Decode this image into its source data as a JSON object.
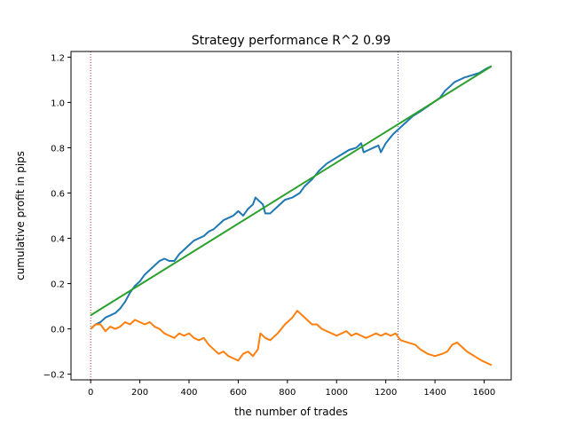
{
  "chart_data": {
    "type": "line",
    "title": "Strategy performance R^2 0.99",
    "xlabel": "the number of trades",
    "ylabel": "cumulative profit in pips",
    "xlim": [
      -80,
      1710
    ],
    "ylim": [
      -0.225,
      1.225
    ],
    "x_ticks": [
      0,
      200,
      400,
      600,
      800,
      1000,
      1200,
      1400,
      1600
    ],
    "y_ticks": [
      -0.2,
      0.0,
      0.2,
      0.4,
      0.6,
      0.8,
      1.0,
      1.2
    ],
    "x_tick_labels": [
      "0",
      "200",
      "400",
      "600",
      "800",
      "1000",
      "1200",
      "1400",
      "1600"
    ],
    "y_tick_labels": [
      "−0.2",
      "0.0",
      "0.2",
      "0.4",
      "0.6",
      "0.8",
      "1.0",
      "1.2"
    ],
    "grid": false,
    "vlines": [
      {
        "x": 0,
        "color": "#d62728",
        "style": "dotted"
      },
      {
        "x": 1250,
        "color": "#6a3d9a",
        "style": "dotted"
      }
    ],
    "series": [
      {
        "color": "#1f77b4",
        "points": [
          [
            0,
            0.0
          ],
          [
            20,
            0.02
          ],
          [
            40,
            0.03
          ],
          [
            60,
            0.05
          ],
          [
            80,
            0.06
          ],
          [
            100,
            0.07
          ],
          [
            120,
            0.09
          ],
          [
            140,
            0.12
          ],
          [
            160,
            0.16
          ],
          [
            180,
            0.19
          ],
          [
            200,
            0.21
          ],
          [
            220,
            0.24
          ],
          [
            240,
            0.26
          ],
          [
            260,
            0.28
          ],
          [
            280,
            0.3
          ],
          [
            300,
            0.31
          ],
          [
            320,
            0.3
          ],
          [
            340,
            0.3
          ],
          [
            360,
            0.33
          ],
          [
            380,
            0.35
          ],
          [
            400,
            0.37
          ],
          [
            420,
            0.39
          ],
          [
            440,
            0.4
          ],
          [
            460,
            0.41
          ],
          [
            480,
            0.43
          ],
          [
            500,
            0.44
          ],
          [
            520,
            0.46
          ],
          [
            540,
            0.48
          ],
          [
            560,
            0.49
          ],
          [
            580,
            0.5
          ],
          [
            600,
            0.52
          ],
          [
            620,
            0.5
          ],
          [
            640,
            0.53
          ],
          [
            660,
            0.55
          ],
          [
            670,
            0.58
          ],
          [
            690,
            0.56
          ],
          [
            700,
            0.55
          ],
          [
            710,
            0.51
          ],
          [
            730,
            0.51
          ],
          [
            760,
            0.54
          ],
          [
            790,
            0.57
          ],
          [
            820,
            0.58
          ],
          [
            850,
            0.6
          ],
          [
            870,
            0.63
          ],
          [
            900,
            0.66
          ],
          [
            930,
            0.7
          ],
          [
            960,
            0.73
          ],
          [
            990,
            0.75
          ],
          [
            1020,
            0.77
          ],
          [
            1050,
            0.79
          ],
          [
            1080,
            0.8
          ],
          [
            1100,
            0.82
          ],
          [
            1110,
            0.78
          ],
          [
            1130,
            0.79
          ],
          [
            1150,
            0.8
          ],
          [
            1170,
            0.81
          ],
          [
            1180,
            0.78
          ],
          [
            1200,
            0.82
          ],
          [
            1230,
            0.86
          ],
          [
            1250,
            0.88
          ],
          [
            1280,
            0.91
          ],
          [
            1310,
            0.94
          ],
          [
            1340,
            0.96
          ],
          [
            1380,
            0.99
          ],
          [
            1420,
            1.02
          ],
          [
            1440,
            1.05
          ],
          [
            1460,
            1.07
          ],
          [
            1480,
            1.09
          ],
          [
            1500,
            1.1
          ],
          [
            1520,
            1.11
          ],
          [
            1550,
            1.12
          ],
          [
            1580,
            1.13
          ],
          [
            1610,
            1.15
          ],
          [
            1630,
            1.16
          ]
        ]
      },
      {
        "color": "#ff7f0e",
        "points": [
          [
            0,
            0.0
          ],
          [
            20,
            0.02
          ],
          [
            40,
            0.02
          ],
          [
            60,
            -0.01
          ],
          [
            80,
            0.01
          ],
          [
            100,
            0.0
          ],
          [
            120,
            0.01
          ],
          [
            140,
            0.03
          ],
          [
            160,
            0.02
          ],
          [
            180,
            0.04
          ],
          [
            200,
            0.03
          ],
          [
            220,
            0.02
          ],
          [
            240,
            0.03
          ],
          [
            260,
            0.01
          ],
          [
            280,
            0.0
          ],
          [
            300,
            -0.02
          ],
          [
            320,
            -0.03
          ],
          [
            340,
            -0.04
          ],
          [
            360,
            -0.02
          ],
          [
            380,
            -0.03
          ],
          [
            400,
            -0.02
          ],
          [
            420,
            -0.04
          ],
          [
            440,
            -0.05
          ],
          [
            460,
            -0.04
          ],
          [
            480,
            -0.07
          ],
          [
            500,
            -0.09
          ],
          [
            520,
            -0.11
          ],
          [
            540,
            -0.1
          ],
          [
            560,
            -0.12
          ],
          [
            580,
            -0.13
          ],
          [
            600,
            -0.14
          ],
          [
            620,
            -0.11
          ],
          [
            640,
            -0.1
          ],
          [
            660,
            -0.12
          ],
          [
            680,
            -0.09
          ],
          [
            690,
            -0.02
          ],
          [
            710,
            -0.04
          ],
          [
            730,
            -0.05
          ],
          [
            760,
            -0.02
          ],
          [
            790,
            0.02
          ],
          [
            820,
            0.05
          ],
          [
            840,
            0.08
          ],
          [
            860,
            0.06
          ],
          [
            880,
            0.04
          ],
          [
            900,
            0.02
          ],
          [
            920,
            0.02
          ],
          [
            940,
            0.0
          ],
          [
            960,
            -0.01
          ],
          [
            980,
            -0.02
          ],
          [
            1000,
            -0.03
          ],
          [
            1020,
            -0.02
          ],
          [
            1040,
            -0.01
          ],
          [
            1060,
            -0.03
          ],
          [
            1080,
            -0.02
          ],
          [
            1100,
            -0.03
          ],
          [
            1120,
            -0.04
          ],
          [
            1140,
            -0.03
          ],
          [
            1160,
            -0.02
          ],
          [
            1180,
            -0.03
          ],
          [
            1200,
            -0.02
          ],
          [
            1220,
            -0.03
          ],
          [
            1240,
            -0.02
          ],
          [
            1260,
            -0.05
          ],
          [
            1290,
            -0.06
          ],
          [
            1320,
            -0.07
          ],
          [
            1340,
            -0.09
          ],
          [
            1370,
            -0.11
          ],
          [
            1400,
            -0.12
          ],
          [
            1430,
            -0.11
          ],
          [
            1450,
            -0.1
          ],
          [
            1470,
            -0.07
          ],
          [
            1490,
            -0.06
          ],
          [
            1510,
            -0.08
          ],
          [
            1530,
            -0.1
          ],
          [
            1560,
            -0.12
          ],
          [
            1590,
            -0.14
          ],
          [
            1610,
            -0.15
          ],
          [
            1630,
            -0.16
          ]
        ]
      },
      {
        "color": "#2ca02c",
        "points": [
          [
            0,
            0.06
          ],
          [
            1630,
            1.16
          ]
        ]
      }
    ]
  }
}
